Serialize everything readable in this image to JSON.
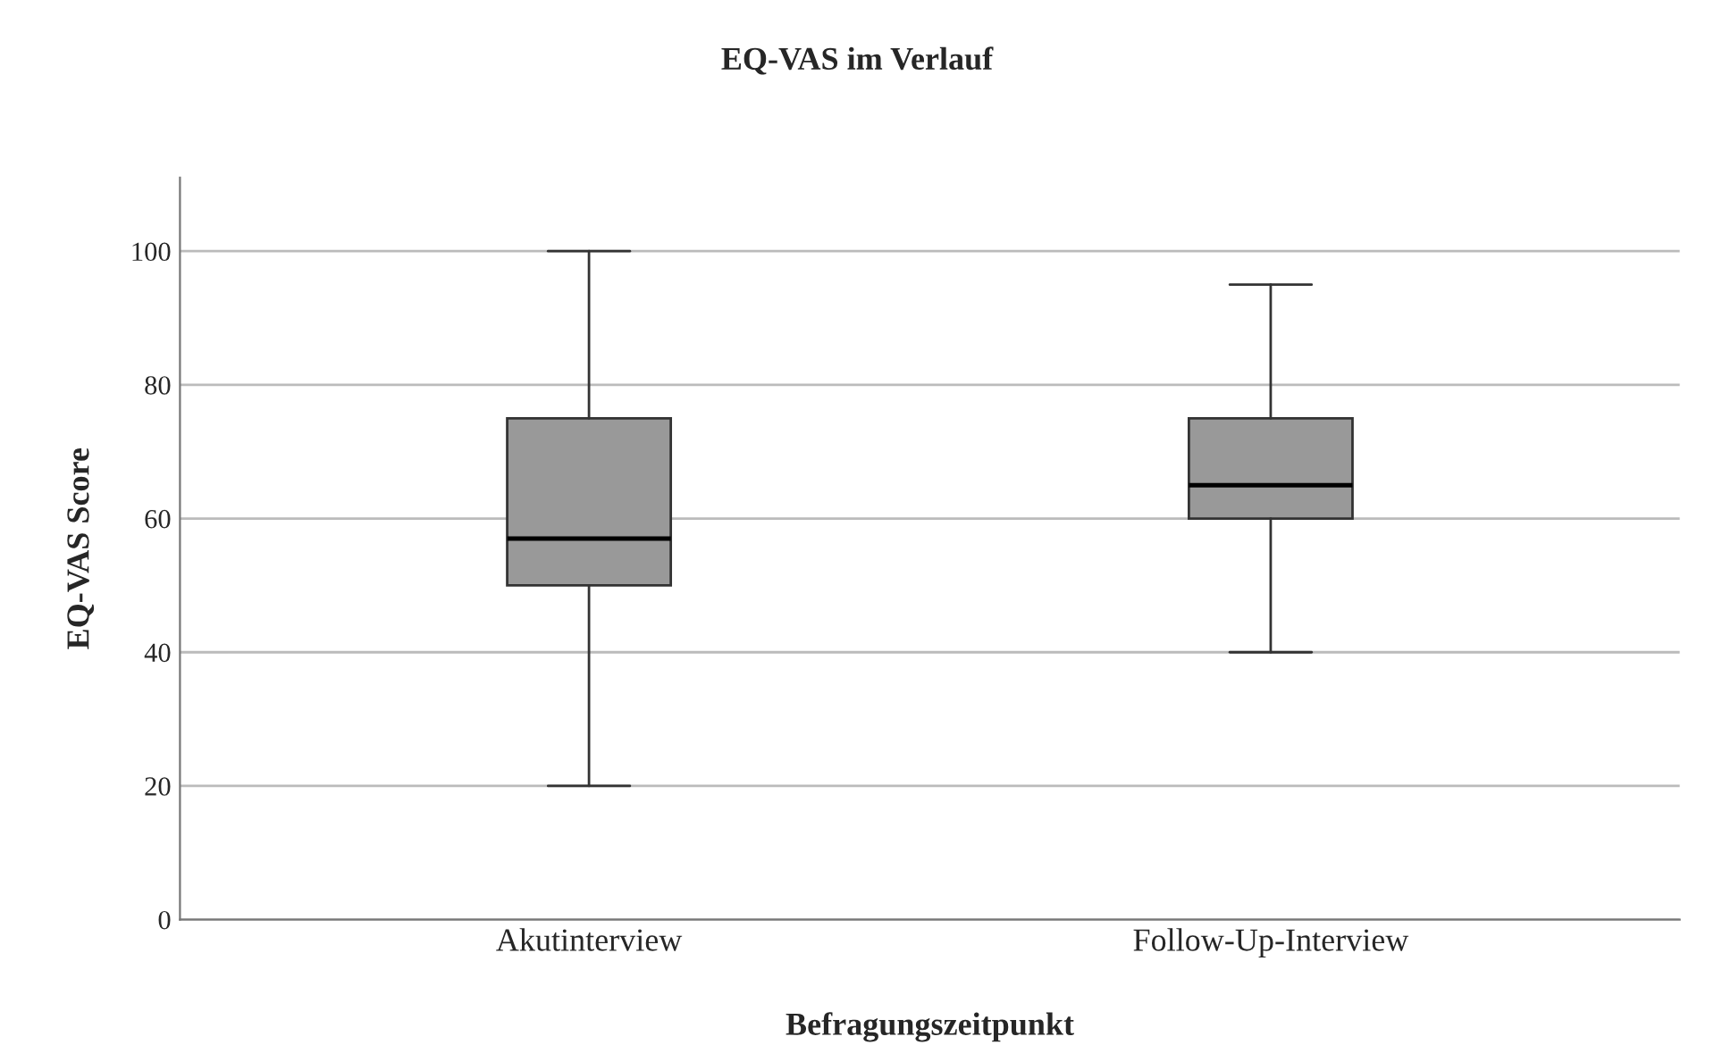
{
  "chart_data": {
    "type": "box",
    "title": "EQ-VAS im Verlauf",
    "xlabel": "Befragungszeitpunkt",
    "ylabel": "EQ-VAS Score",
    "categories": [
      "Akutinterview",
      "Follow-Up-Interview"
    ],
    "boxes": [
      {
        "low": 20,
        "q1": 50,
        "median": 57,
        "q3": 75,
        "high": 100
      },
      {
        "low": 40,
        "q1": 60,
        "median": 65,
        "q3": 75,
        "high": 95
      }
    ],
    "color": "#999999",
    "ylim": [
      0,
      111
    ],
    "yticks": [
      0,
      20,
      40,
      60,
      80,
      100
    ],
    "grid": "y"
  }
}
